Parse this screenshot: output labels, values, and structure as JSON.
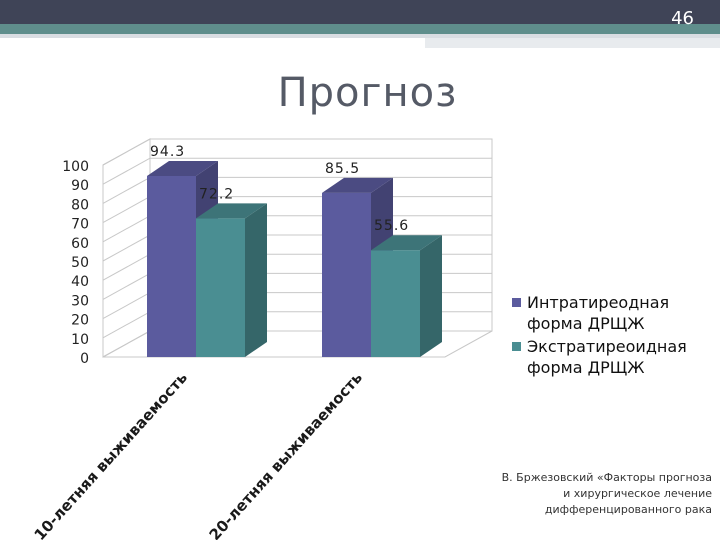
{
  "slide": {
    "number": "46",
    "title": "Прогноз",
    "source_note": "В. Бржезовский «Факторы прогноза и хирургическое лечение дифференцированного рака"
  },
  "colors": {
    "series1": "#5b5b9e",
    "series2": "#4a8e92",
    "header": "#3f4457",
    "accent": "#5f8e8c"
  },
  "chart_data": {
    "type": "bar",
    "categories": [
      "10-летняя выживаемость",
      "20-летняя выживаемость"
    ],
    "series": [
      {
        "name": "Интратиреодная форма ДРЩЖ",
        "values": [
          94.3,
          85.5
        ]
      },
      {
        "name": "Экстратиреоидная форма ДРЩЖ",
        "values": [
          72.2,
          55.6
        ]
      }
    ],
    "ylim": [
      0,
      100
    ],
    "yticks": [
      "0",
      "10",
      "20",
      "30",
      "40",
      "50",
      "60",
      "70",
      "80",
      "90",
      "100"
    ],
    "grid": true,
    "legend": "right",
    "style": "3d-clustered"
  }
}
